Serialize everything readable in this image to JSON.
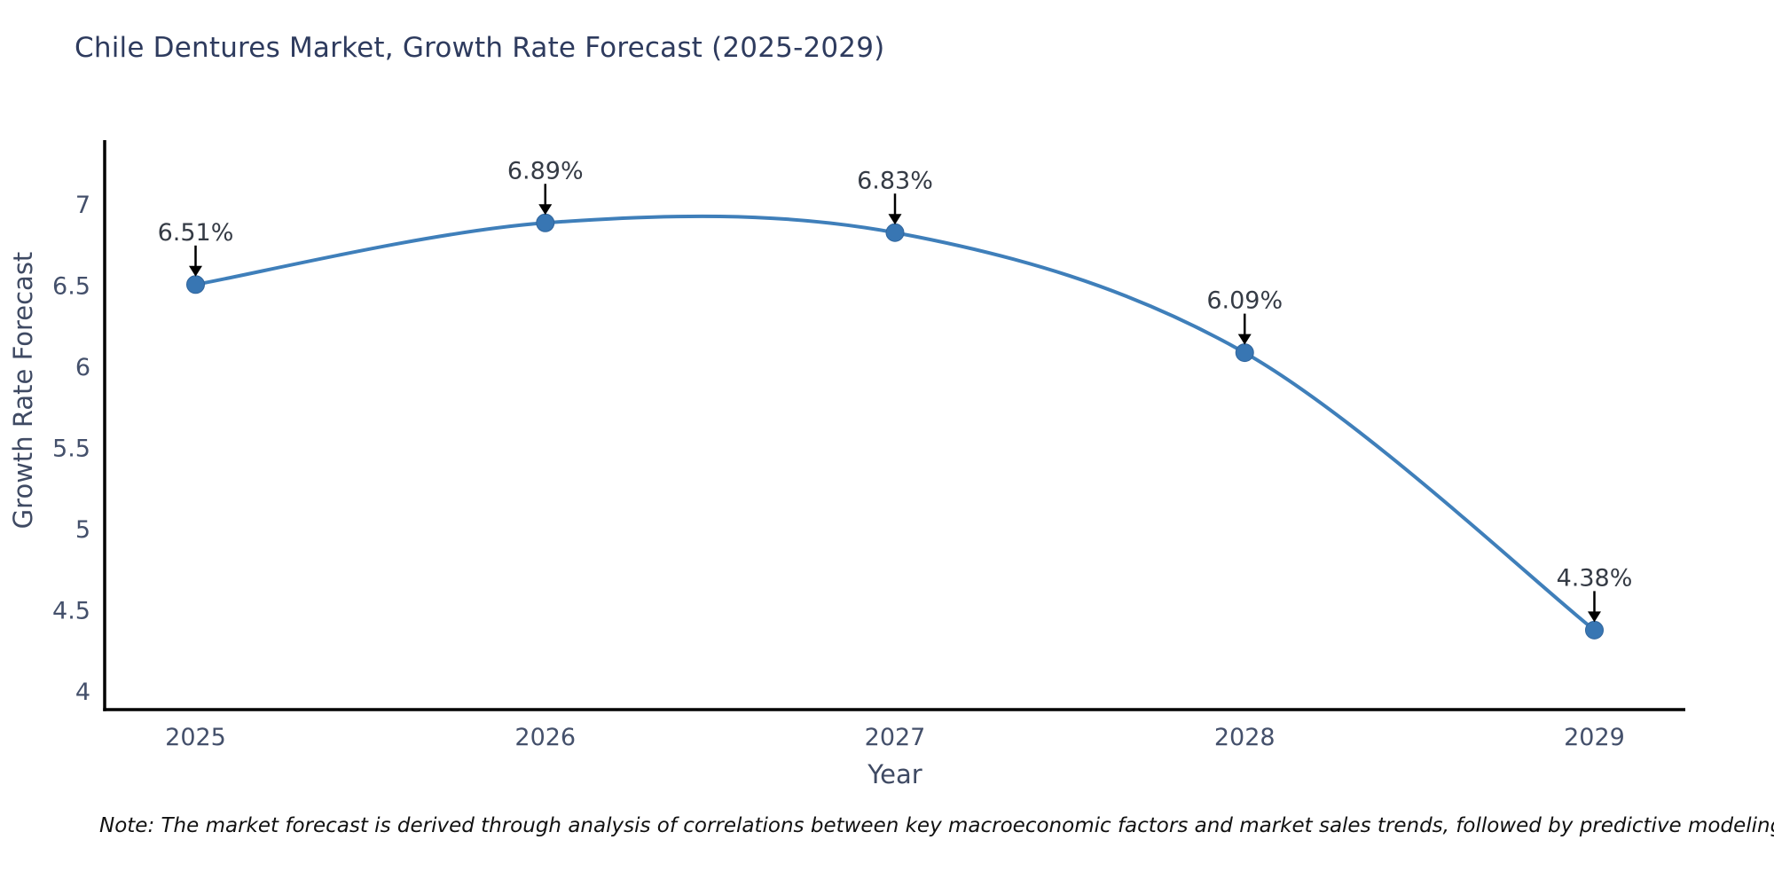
{
  "footnote": "Note: The market forecast is derived through analysis of correlations between key macroeconomic factors and market sales trends, followed by predictive modeling to project future sales.",
  "chart_data": {
    "type": "line",
    "title": "Chile Dentures Market, Growth Rate Forecast (2025-2029)",
    "xlabel": "Year",
    "ylabel": "Growth Rate Forecast",
    "x": [
      2025,
      2026,
      2027,
      2028,
      2029
    ],
    "values": [
      6.51,
      6.89,
      6.83,
      6.09,
      4.38
    ],
    "point_labels": [
      "6.51%",
      "6.89%",
      "6.83%",
      "6.09%",
      "4.38%"
    ],
    "xticks": [
      "2025",
      "2026",
      "2027",
      "2028",
      "2029"
    ],
    "yticks": [
      4,
      4.5,
      5,
      5.5,
      6,
      6.5,
      7
    ],
    "xlim": [
      2024.74,
      2029.26
    ],
    "ylim": [
      3.89,
      7.4
    ],
    "grid": false,
    "legend": "none",
    "line_shape": "spline",
    "line_color": "#3f7fba",
    "marker_color": "#3876b3",
    "marker_edge_color": "#31659c",
    "axis_color": "#000000",
    "arrow_color": "#000000"
  }
}
